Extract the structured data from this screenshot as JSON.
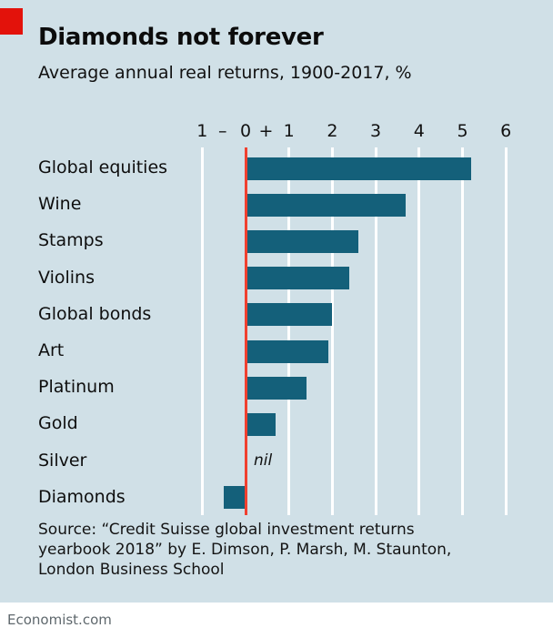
{
  "header": {
    "title": "Diamonds not forever",
    "subtitle": "Average annual real returns, 1900-2017, %"
  },
  "chart_data": {
    "type": "bar",
    "orientation": "horizontal",
    "title": "Diamonds not forever",
    "subtitle": "Average annual real returns, 1900-2017, %",
    "categories": [
      "Global equities",
      "Wine",
      "Stamps",
      "Violins",
      "Global bonds",
      "Art",
      "Platinum",
      "Gold",
      "Silver",
      "Diamonds"
    ],
    "values": [
      5.2,
      3.7,
      2.6,
      2.4,
      2.0,
      1.9,
      1.4,
      0.7,
      0,
      -0.5
    ],
    "nil_category": "Silver",
    "nil_label": "nil",
    "xlim": [
      -1.25,
      6.6
    ],
    "grid": true,
    "legend": "none",
    "ticks": [
      {
        "v": -1,
        "label": "1"
      },
      {
        "v": -0.53,
        "label": "–"
      },
      {
        "v": 0,
        "label": "0"
      },
      {
        "v": 0.47,
        "label": "+"
      },
      {
        "v": 1,
        "label": "1"
      },
      {
        "v": 2,
        "label": "2"
      },
      {
        "v": 3,
        "label": "3"
      },
      {
        "v": 4,
        "label": "4"
      },
      {
        "v": 5,
        "label": "5"
      },
      {
        "v": 6,
        "label": "6"
      }
    ],
    "gridline_values": [
      -1,
      1,
      2,
      3,
      4,
      5,
      6
    ],
    "zero_line_value": 0,
    "colors": {
      "bar": "#14607a",
      "zero_line": "#f0402f",
      "gridline": "#ffffff",
      "background": "#d0e0e7",
      "red_tab": "#e3120b"
    }
  },
  "source": {
    "lines": [
      "Source: “Credit Suisse global investment returns",
      "yearbook 2018” by E. Dimson, P. Marsh, M. Staunton,",
      "London Business School"
    ]
  },
  "footer": {
    "brand": "Economist.com"
  }
}
